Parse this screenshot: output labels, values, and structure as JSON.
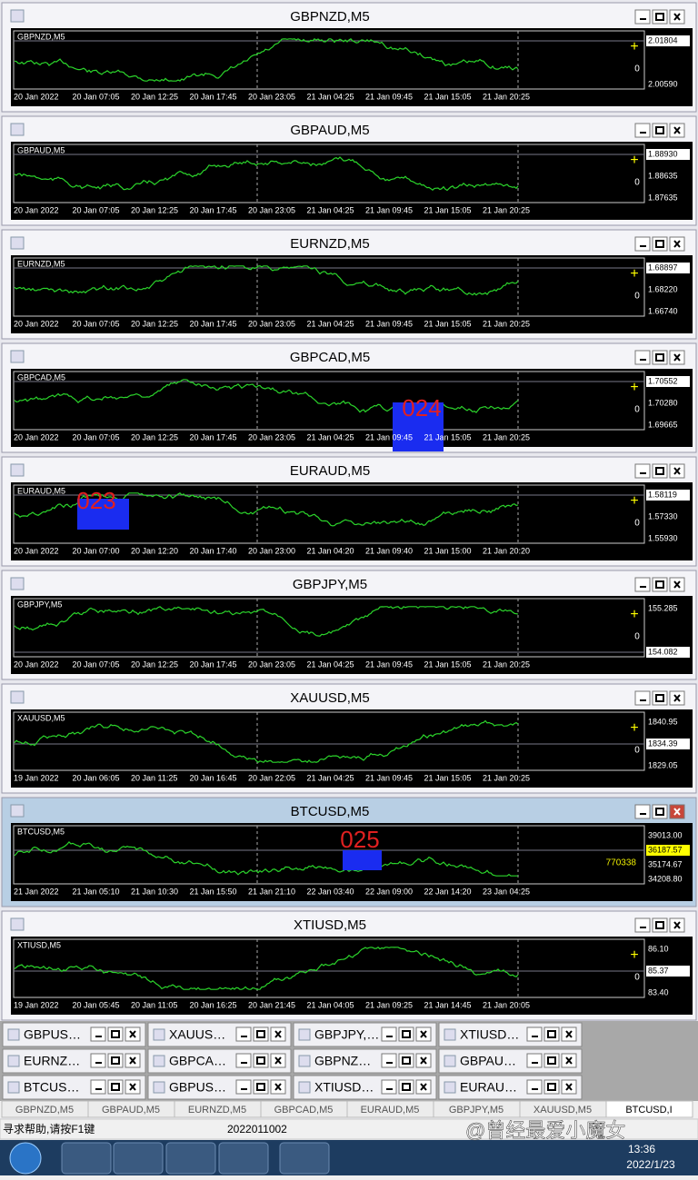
{
  "windows": [
    {
      "title": "GBPNZD,M5",
      "symbol": "GBPNZD,M5",
      "prices": [
        "2.01804",
        "2.00590"
      ],
      "highlight": 0,
      "zero": "0",
      "x_labels": [
        "20 Jan 2022",
        "20 Jan 07:05",
        "20 Jan 12:25",
        "20 Jan 17:45",
        "20 Jan 23:05",
        "21 Jan 04:25",
        "21 Jan 09:45",
        "21 Jan 15:05",
        "21 Jan 20:25"
      ]
    },
    {
      "title": "GBPAUD,M5",
      "symbol": "GBPAUD,M5",
      "prices": [
        "1.88930",
        "1.88635",
        "1.87635"
      ],
      "highlight": 0,
      "zero": "0",
      "x_labels": [
        "20 Jan 2022",
        "20 Jan 07:05",
        "20 Jan 12:25",
        "20 Jan 17:45",
        "20 Jan 23:05",
        "21 Jan 04:25",
        "21 Jan 09:45",
        "21 Jan 15:05",
        "21 Jan 20:25"
      ]
    },
    {
      "title": "EURNZD,M5",
      "symbol": "EURNZD,M5",
      "prices": [
        "1.68897",
        "1.68220",
        "1.66740"
      ],
      "highlight": 0,
      "zero": "0",
      "x_labels": [
        "20 Jan 2022",
        "20 Jan 07:05",
        "20 Jan 12:25",
        "20 Jan 17:45",
        "20 Jan 23:05",
        "21 Jan 04:25",
        "21 Jan 09:45",
        "21 Jan 15:05",
        "21 Jan 20:25"
      ]
    },
    {
      "title": "GBPCAD,M5",
      "symbol": "GBPCAD,M5",
      "prices": [
        "1.70552",
        "1.70280",
        "1.69665"
      ],
      "highlight": 0,
      "zero": "0",
      "annotation": "024",
      "x_labels": [
        "20 Jan 2022",
        "20 Jan 07:05",
        "20 Jan 12:25",
        "20 Jan 17:45",
        "20 Jan 23:05",
        "21 Jan 04:25",
        "21 Jan 09:45",
        "21 Jan 15:05",
        "21 Jan 20:25"
      ]
    },
    {
      "title": "EURAUD,M5",
      "symbol": "EURAUD,M5",
      "prices": [
        "1.58119",
        "1.57330",
        "1.55930"
      ],
      "highlight": 0,
      "zero": "0",
      "annotation": "023",
      "x_labels": [
        "20 Jan 2022",
        "20 Jan 07:00",
        "20 Jan 12:20",
        "20 Jan 17:40",
        "20 Jan 23:00",
        "21 Jan 04:20",
        "21 Jan 09:40",
        "21 Jan 15:00",
        "21 Jan 20:20"
      ]
    },
    {
      "title": "GBPJPY,M5",
      "symbol": "GBPJPY,M5",
      "prices": [
        "155.285",
        "154.082"
      ],
      "highlight": 1,
      "zero": "0",
      "x_labels": [
        "20 Jan 2022",
        "20 Jan 07:05",
        "20 Jan 12:25",
        "20 Jan 17:45",
        "20 Jan 23:05",
        "21 Jan 04:25",
        "21 Jan 09:45",
        "21 Jan 15:05",
        "21 Jan 20:25"
      ]
    },
    {
      "title": "XAUUSD,M5",
      "symbol": "XAUUSD,M5",
      "prices": [
        "1840.95",
        "1834.39",
        "1829.05"
      ],
      "highlight": 1,
      "zero": "0",
      "x_labels": [
        "19 Jan 2022",
        "20 Jan 06:05",
        "20 Jan 11:25",
        "20 Jan 16:45",
        "20 Jan 22:05",
        "21 Jan 04:25",
        "21 Jan 09:45",
        "21 Jan 15:05",
        "21 Jan 20:25"
      ]
    },
    {
      "title": "BTCUSD,M5",
      "symbol": "BTCUSD,M5",
      "prices": [
        "39013.00",
        "36187.57",
        "35174.67",
        "34208.80"
      ],
      "highlight": 1,
      "extra": "770338",
      "annotation": "025",
      "x_labels": [
        "21 Jan 2022",
        "21 Jan 05:10",
        "21 Jan 10:30",
        "21 Jan 15:50",
        "21 Jan 21:10",
        "22 Jan 03:40",
        "22 Jan 09:00",
        "22 Jan 14:20",
        "23 Jan 04:25"
      ]
    },
    {
      "title": "XTIUSD,M5",
      "symbol": "XTIUSD,M5",
      "prices": [
        "86.10",
        "85.37",
        "83.40"
      ],
      "highlight": 1,
      "zero": "0",
      "x_labels": [
        "19 Jan 2022",
        "20 Jan 05:45",
        "20 Jan 11:05",
        "20 Jan 16:25",
        "20 Jan 21:45",
        "21 Jan 04:05",
        "21 Jan 09:25",
        "21 Jan 14:45",
        "21 Jan 20:05"
      ]
    }
  ],
  "minimized": [
    "GBPUS…",
    "XAUUS…",
    "GBPJPY,…",
    "XTIUSD…",
    "EURNZ…",
    "GBPCA…",
    "GBPNZ…",
    "GBPAU…",
    "BTCUS…",
    "GBPUS…",
    "XTIUSD…",
    "EURAU…"
  ],
  "tabs": [
    "GBPNZD,M5",
    "GBPAUD,M5",
    "EURNZD,M5",
    "GBPCAD,M5",
    "EURAUD,M5",
    "GBPJPY,M5",
    "XAUUSD,M5",
    "BTCUSD,I"
  ],
  "status": {
    "help": "寻求帮助,请按F1键",
    "code": "2022011002"
  },
  "taskbar": {
    "time": "13:36",
    "date": "2022/1/23",
    "watermark": "@曾经最爱小魔女"
  }
}
